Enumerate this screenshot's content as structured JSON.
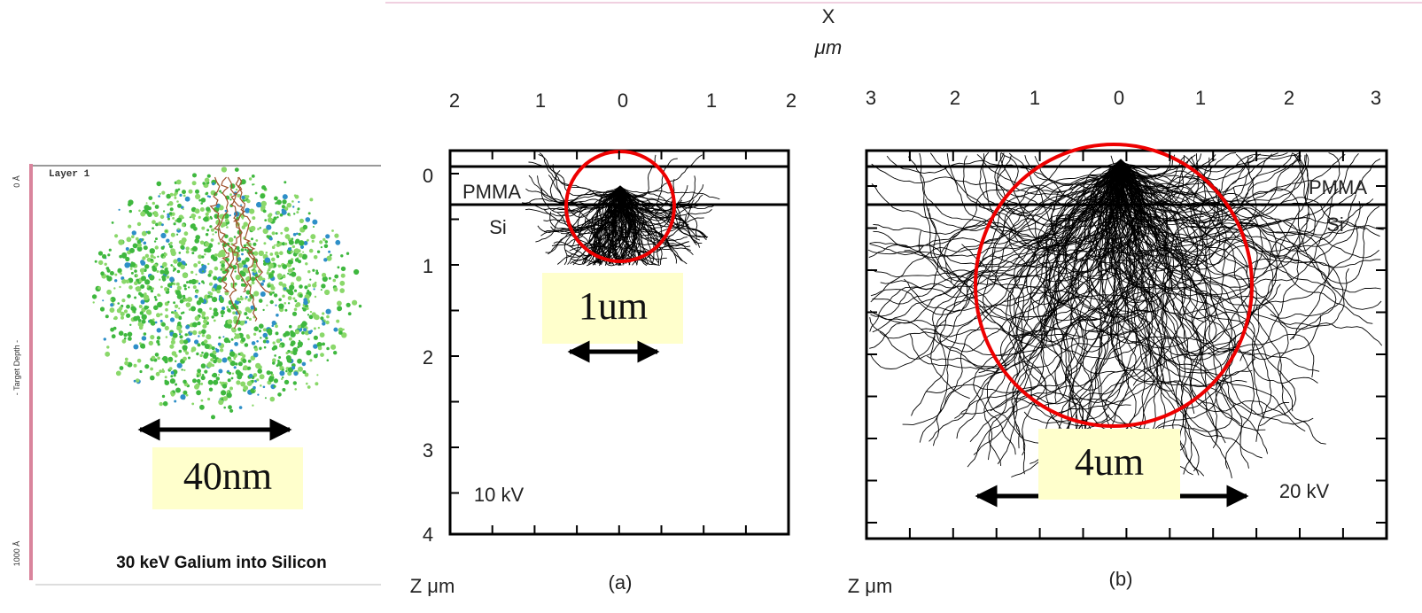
{
  "left_panel": {
    "layer": "Layer 1",
    "axis_top": "0 Å",
    "axis_label": "- Target Depth -",
    "axis_bottom": "1000 Å",
    "scale_label": "40nm",
    "title": "30 keV Galium into Silicon"
  },
  "x_axis": {
    "label": "X",
    "unit": "μm"
  },
  "panel_a": {
    "x_ticks": [
      "2",
      "1",
      "0",
      "1",
      "2"
    ],
    "y_ticks": [
      "0",
      "1",
      "2",
      "3",
      "4"
    ],
    "layer_top": "PMMA",
    "layer_bottom": "Si",
    "voltage": "10 kV",
    "scale_label": "1um",
    "y_label": "Z μm",
    "caption": "(a)"
  },
  "panel_b": {
    "x_ticks": [
      "3",
      "2",
      "1",
      "0",
      "1",
      "2",
      "3"
    ],
    "layer_top": "PMMA",
    "layer_bottom": "Si",
    "voltage": "20 kV",
    "scale_label": "4um",
    "y_label": "Z μm",
    "caption": "(b)"
  }
}
